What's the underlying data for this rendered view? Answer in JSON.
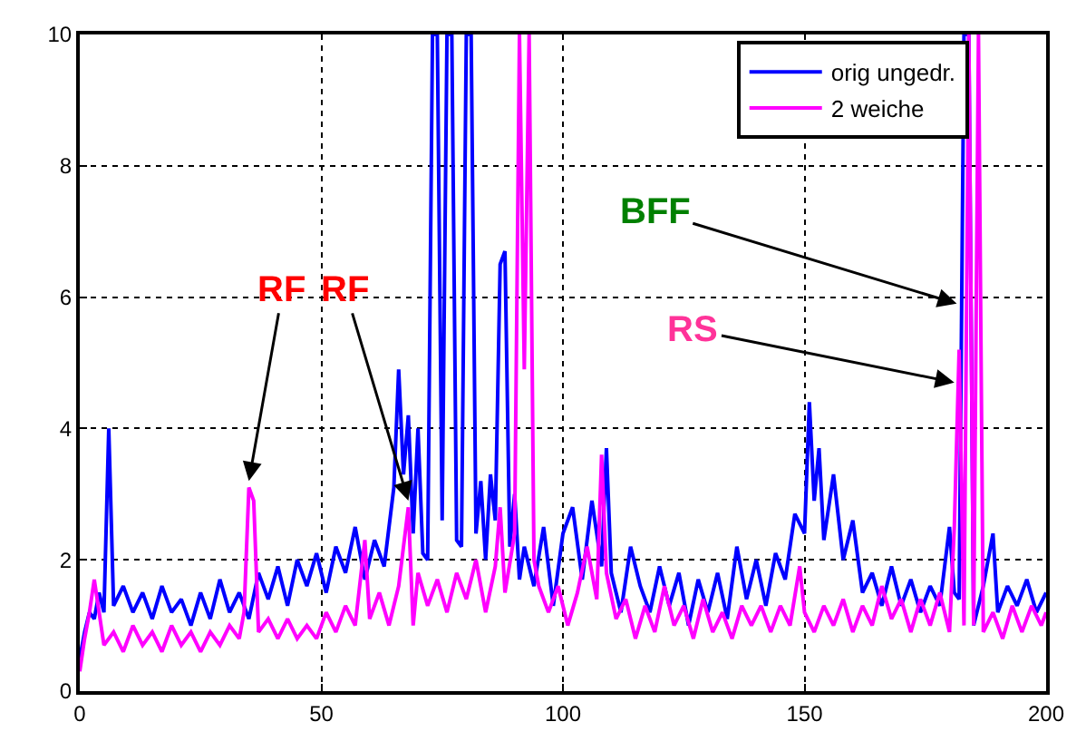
{
  "chart_data": {
    "type": "line",
    "xlim": [
      0,
      200
    ],
    "xticks": [
      0,
      50,
      100,
      150,
      200
    ],
    "ylim": [
      0,
      10
    ],
    "yticks": [
      0,
      2,
      4,
      6,
      8,
      10
    ],
    "grid": true,
    "legend": "top right",
    "line_style": "solid",
    "series": [
      {
        "name": "orig ungedr.",
        "color": "#0000ff",
        "x": [
          0,
          1,
          2,
          3,
          4,
          5,
          6,
          7,
          9,
          11,
          13,
          15,
          17,
          19,
          21,
          23,
          25,
          27,
          29,
          31,
          33,
          35,
          37,
          39,
          41,
          43,
          45,
          47,
          49,
          51,
          53,
          55,
          57,
          59,
          61,
          63,
          65,
          66,
          67,
          68,
          69,
          70,
          71,
          72,
          73,
          74,
          75,
          76,
          77,
          78,
          79,
          80,
          81,
          82,
          83,
          84,
          85,
          86,
          87,
          88,
          89,
          90,
          91,
          92,
          94,
          96,
          98,
          100,
          102,
          104,
          106,
          108,
          109,
          110,
          112,
          114,
          116,
          118,
          120,
          122,
          124,
          126,
          128,
          130,
          132,
          134,
          136,
          138,
          140,
          142,
          144,
          146,
          148,
          150,
          151,
          152,
          153,
          154,
          156,
          158,
          160,
          162,
          164,
          166,
          168,
          170,
          172,
          174,
          176,
          178,
          180,
          181,
          182,
          183,
          184,
          185,
          187,
          189,
          190,
          192,
          194,
          196,
          198,
          200
        ],
        "values": [
          0.5,
          0.9,
          1.2,
          1.1,
          1.5,
          1.2,
          4.0,
          1.3,
          1.6,
          1.2,
          1.5,
          1.1,
          1.6,
          1.2,
          1.4,
          1.0,
          1.5,
          1.1,
          1.7,
          1.2,
          1.5,
          1.1,
          1.8,
          1.4,
          1.9,
          1.3,
          2.0,
          1.6,
          2.1,
          1.5,
          2.2,
          1.8,
          2.5,
          1.7,
          2.3,
          1.9,
          3.1,
          4.9,
          3.3,
          4.2,
          2.4,
          4.0,
          2.1,
          2.0,
          10,
          10,
          2.6,
          10,
          10,
          2.3,
          2.2,
          10,
          10,
          2.4,
          3.2,
          2.0,
          3.3,
          2.6,
          6.5,
          6.7,
          2.2,
          3.0,
          1.7,
          2.2,
          1.6,
          2.5,
          1.3,
          2.4,
          2.8,
          1.7,
          2.9,
          1.9,
          3.7,
          1.8,
          1.2,
          2.2,
          1.6,
          1.2,
          1.9,
          1.3,
          1.8,
          1.0,
          1.7,
          1.2,
          1.8,
          1.1,
          2.2,
          1.4,
          2.0,
          1.3,
          2.1,
          1.7,
          2.7,
          2.4,
          4.4,
          2.9,
          3.7,
          2.3,
          3.3,
          2.0,
          2.6,
          1.5,
          1.8,
          1.3,
          1.9,
          1.3,
          1.7,
          1.2,
          1.6,
          1.3,
          2.5,
          1.5,
          1.4,
          10,
          10,
          1.0,
          1.6,
          2.4,
          1.2,
          1.6,
          1.3,
          1.7,
          1.2,
          1.5
        ]
      },
      {
        "name": "2 weiche",
        "color": "#ff00ff",
        "x": [
          0,
          1,
          2,
          3,
          4,
          5,
          7,
          9,
          11,
          13,
          15,
          17,
          19,
          21,
          23,
          25,
          27,
          29,
          31,
          33,
          34,
          35,
          36,
          37,
          39,
          41,
          43,
          45,
          47,
          49,
          51,
          53,
          55,
          57,
          59,
          60,
          62,
          64,
          66,
          68,
          69,
          70,
          72,
          74,
          76,
          78,
          80,
          82,
          84,
          86,
          87,
          88,
          90,
          91,
          92,
          93,
          94,
          95,
          97,
          99,
          101,
          103,
          105,
          107,
          108,
          109,
          111,
          113,
          115,
          117,
          119,
          121,
          123,
          125,
          127,
          129,
          131,
          133,
          135,
          137,
          139,
          141,
          143,
          145,
          147,
          149,
          150,
          152,
          154,
          156,
          158,
          160,
          162,
          164,
          166,
          168,
          170,
          172,
          174,
          176,
          178,
          180,
          181,
          182,
          183,
          184,
          185,
          186,
          187,
          189,
          191,
          193,
          195,
          197,
          199,
          200
        ],
        "values": [
          0.3,
          0.8,
          1.2,
          1.7,
          1.2,
          0.7,
          0.9,
          0.6,
          1.0,
          0.7,
          0.9,
          0.6,
          1.0,
          0.7,
          0.9,
          0.6,
          0.9,
          0.7,
          1.0,
          0.8,
          1.2,
          3.1,
          2.9,
          0.9,
          1.1,
          0.8,
          1.1,
          0.8,
          1.0,
          0.8,
          1.2,
          0.9,
          1.3,
          1.0,
          2.3,
          1.1,
          1.5,
          1.0,
          1.6,
          2.8,
          1.0,
          1.8,
          1.3,
          1.7,
          1.2,
          1.8,
          1.4,
          2.0,
          1.2,
          1.9,
          2.8,
          1.5,
          2.4,
          10,
          4.9,
          10,
          2.0,
          1.6,
          1.2,
          1.6,
          1.0,
          1.5,
          2.2,
          1.4,
          3.6,
          1.8,
          1.1,
          1.4,
          0.8,
          1.3,
          0.9,
          1.6,
          1.0,
          1.3,
          0.8,
          1.4,
          0.9,
          1.2,
          0.8,
          1.3,
          1.0,
          1.3,
          0.9,
          1.3,
          1.0,
          1.9,
          1.2,
          0.9,
          1.3,
          1.0,
          1.4,
          0.9,
          1.3,
          1.0,
          1.6,
          1.1,
          1.4,
          0.9,
          1.4,
          1.0,
          1.5,
          0.9,
          2.5,
          5.2,
          1.0,
          10,
          1.0,
          10,
          0.9,
          1.2,
          0.8,
          1.3,
          0.9,
          1.3,
          1.0,
          1.2
        ]
      }
    ],
    "annotations": [
      {
        "text": "RF",
        "x": 35,
        "y": 3.2
      },
      {
        "text": "RF",
        "x": 68,
        "y": 2.9
      },
      {
        "text": "BFF",
        "x": 181.5,
        "y": 5.9
      },
      {
        "text": "RS",
        "x": 181,
        "y": 4.7
      }
    ]
  }
}
